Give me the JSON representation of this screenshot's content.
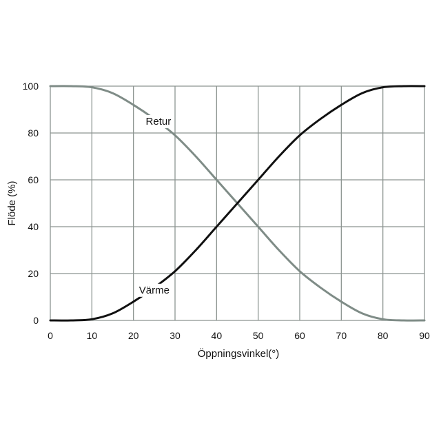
{
  "chart_data": {
    "type": "line",
    "xlabel": "Öppningsvinkel(°)",
    "ylabel": "Flöde (%)",
    "xlim": [
      0,
      90
    ],
    "ylim": [
      0,
      100
    ],
    "xticks": [
      0,
      10,
      20,
      30,
      40,
      50,
      60,
      70,
      80,
      90
    ],
    "yticks": [
      0,
      20,
      40,
      60,
      80,
      100
    ],
    "grid": true,
    "series": [
      {
        "name": "Retur",
        "color": "#7f8c87",
        "x": [
          0,
          5,
          10,
          15,
          20,
          25,
          30,
          35,
          40,
          45,
          50,
          55,
          60,
          65,
          70,
          75,
          80,
          85,
          90
        ],
        "y": [
          100,
          100,
          99.5,
          97,
          92,
          86,
          79,
          70,
          60,
          50,
          40,
          30,
          21,
          14,
          8,
          3,
          0.5,
          0,
          0
        ]
      },
      {
        "name": "Värme",
        "color": "#111111",
        "x": [
          0,
          5,
          10,
          15,
          20,
          25,
          30,
          35,
          40,
          45,
          50,
          55,
          60,
          65,
          70,
          75,
          80,
          85,
          90
        ],
        "y": [
          0,
          0,
          0.5,
          3,
          8,
          14,
          21,
          30,
          40,
          50,
          60,
          70,
          79,
          86,
          92,
          97,
          99.5,
          100,
          100
        ]
      }
    ],
    "annotations": [
      {
        "text": "Retur",
        "series": "Retur",
        "x": 26,
        "y": 85
      },
      {
        "text": "Värme",
        "series": "Värme",
        "x": 25,
        "y": 13
      }
    ]
  }
}
